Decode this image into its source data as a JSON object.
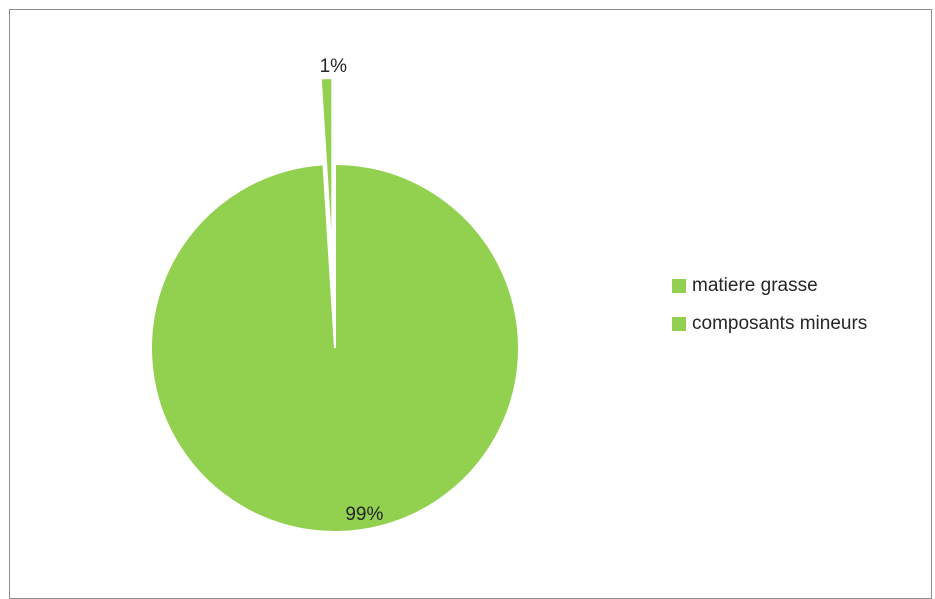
{
  "chart_data": {
    "type": "pie",
    "title": "",
    "slices": [
      {
        "name": "matiere grasse",
        "value": 99,
        "label": "99%",
        "color": "#92d050"
      },
      {
        "name": "composants mineurs",
        "value": 1,
        "label": "1%",
        "color": "#92d050"
      }
    ],
    "legend_position": "right",
    "legend": [
      {
        "label": "matiere grasse",
        "color": "#92d050"
      },
      {
        "label": "composants mineurs",
        "color": "#92d050"
      }
    ]
  }
}
